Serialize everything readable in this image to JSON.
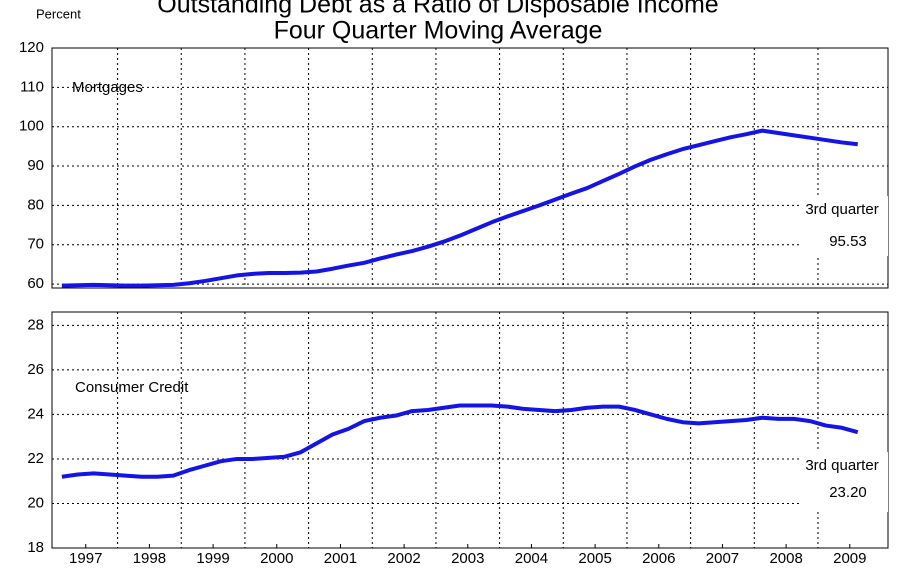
{
  "chart_data": [
    {
      "type": "line",
      "title": "Outstanding Debt as a Ratio of Disposable Income",
      "subtitle": "Four Quarter Moving Average",
      "ylabel": "Percent",
      "annotation": "Mortgages",
      "note": "3rd quarter",
      "last_label": "95.53",
      "xlim": [
        1996.97,
        2010.1
      ],
      "ylim": [
        59,
        120
      ],
      "yticks": [
        60,
        70,
        80,
        90,
        100,
        110,
        120
      ],
      "grid": true,
      "x": [
        1997.125,
        1997.375,
        1997.625,
        1997.875,
        1998.125,
        1998.375,
        1998.625,
        1998.875,
        1999.125,
        1999.375,
        1999.625,
        1999.875,
        2000.125,
        2000.375,
        2000.625,
        2000.875,
        2001.125,
        2001.375,
        2001.625,
        2001.875,
        2002.125,
        2002.375,
        2002.625,
        2002.875,
        2003.125,
        2003.375,
        2003.625,
        2003.875,
        2004.125,
        2004.375,
        2004.625,
        2004.875,
        2005.125,
        2005.375,
        2005.625,
        2005.875,
        2006.125,
        2006.375,
        2006.625,
        2006.875,
        2007.125,
        2007.375,
        2007.625,
        2007.875,
        2008.125,
        2008.375,
        2008.625,
        2008.875,
        2009.125,
        2009.375,
        2009.625
      ],
      "series": [
        {
          "name": "Mortgages",
          "color": "#1414e6",
          "values": [
            59.6,
            59.7,
            59.8,
            59.7,
            59.6,
            59.6,
            59.7,
            59.8,
            60.2,
            60.8,
            61.5,
            62.2,
            62.6,
            62.8,
            62.8,
            62.9,
            63.2,
            63.9,
            64.7,
            65.4,
            66.5,
            67.5,
            68.4,
            69.5,
            70.8,
            72.3,
            74.0,
            75.7,
            77.2,
            78.6,
            80.0,
            81.5,
            83.0,
            84.4,
            86.2,
            88.0,
            89.9,
            91.6,
            93.0,
            94.3,
            95.3,
            96.3,
            97.3,
            98.1,
            99.0,
            98.4,
            97.8,
            97.2,
            96.6,
            96.0,
            95.53
          ]
        }
      ]
    },
    {
      "type": "line",
      "annotation": "Consumer Credit",
      "note": "3rd quarter",
      "last_label": "23.20",
      "xlim": [
        1996.97,
        2010.1
      ],
      "ylim": [
        18,
        28.6
      ],
      "yticks": [
        18,
        20,
        22,
        24,
        26,
        28
      ],
      "grid": true,
      "xticks": [
        {
          "value": 1997.5,
          "label": "1997"
        },
        {
          "value": 1998.5,
          "label": "1998"
        },
        {
          "value": 1999.5,
          "label": "1999"
        },
        {
          "value": 2000.5,
          "label": "2000"
        },
        {
          "value": 2001.5,
          "label": "2001"
        },
        {
          "value": 2002.5,
          "label": "2002"
        },
        {
          "value": 2003.5,
          "label": "2003"
        },
        {
          "value": 2004.5,
          "label": "2004"
        },
        {
          "value": 2005.5,
          "label": "2005"
        },
        {
          "value": 2006.5,
          "label": "2006"
        },
        {
          "value": 2007.5,
          "label": "2007"
        },
        {
          "value": 2008.5,
          "label": "2008"
        },
        {
          "value": 2009.5,
          "label": "2009"
        }
      ],
      "x": [
        1997.125,
        1997.375,
        1997.625,
        1997.875,
        1998.125,
        1998.375,
        1998.625,
        1998.875,
        1999.125,
        1999.375,
        1999.625,
        1999.875,
        2000.125,
        2000.375,
        2000.625,
        2000.875,
        2001.125,
        2001.375,
        2001.625,
        2001.875,
        2002.125,
        2002.375,
        2002.625,
        2002.875,
        2003.125,
        2003.375,
        2003.625,
        2003.875,
        2004.125,
        2004.375,
        2004.625,
        2004.875,
        2005.125,
        2005.375,
        2005.625,
        2005.875,
        2006.125,
        2006.375,
        2006.625,
        2006.875,
        2007.125,
        2007.375,
        2007.625,
        2007.875,
        2008.125,
        2008.375,
        2008.625,
        2008.875,
        2009.125,
        2009.375,
        2009.625
      ],
      "series": [
        {
          "name": "Consumer Credit",
          "color": "#1414e6",
          "values": [
            21.2,
            21.3,
            21.35,
            21.3,
            21.25,
            21.2,
            21.2,
            21.25,
            21.5,
            21.7,
            21.9,
            22.0,
            22.0,
            22.05,
            22.1,
            22.3,
            22.7,
            23.1,
            23.35,
            23.7,
            23.85,
            23.95,
            24.15,
            24.2,
            24.3,
            24.4,
            24.4,
            24.4,
            24.35,
            24.25,
            24.2,
            24.15,
            24.2,
            24.3,
            24.35,
            24.35,
            24.2,
            24.0,
            23.8,
            23.65,
            23.6,
            23.65,
            23.7,
            23.75,
            23.85,
            23.8,
            23.8,
            23.7,
            23.5,
            23.4,
            23.2
          ]
        }
      ]
    }
  ]
}
